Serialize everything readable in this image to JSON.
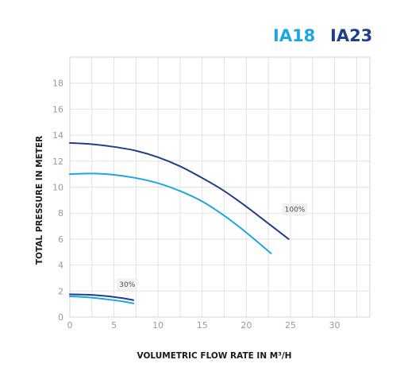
{
  "colors": {
    "series_light": "#1aa7e4",
    "series_dark": "#1f3f8c",
    "grid": "#e2e2e2",
    "annotation_bg": "#f1f1f1"
  },
  "chart_data": {
    "type": "line",
    "xlabel": "VOLUMETRIC FLOW RATE IN M³/H",
    "ylabel": "TOTAL PRESSURE IN METER",
    "xlim": [
      0,
      34
    ],
    "ylim": [
      0,
      20
    ],
    "x_ticks": [
      "0",
      "5",
      "10",
      "15",
      "20",
      "25",
      "30"
    ],
    "y_ticks": [
      "0",
      "2",
      "4",
      "6",
      "8",
      "10",
      "12",
      "14",
      "16",
      "18"
    ],
    "grid": true,
    "legend_position": "top-right",
    "legend": [
      {
        "label": "IA18",
        "color": "#1aa7e4"
      },
      {
        "label": "IA23",
        "color": "#1f3f8c"
      }
    ],
    "annotations": [
      {
        "text": "100%",
        "x": 25.5,
        "y": 8.3
      },
      {
        "text": "30%",
        "x": 6.5,
        "y": 2.5
      }
    ],
    "series": [
      {
        "name": "IA23",
        "speed": "100%",
        "color": "#1f3f8c",
        "x": [
          0,
          2.5,
          5,
          7.5,
          10,
          12.5,
          15,
          17.5,
          20,
          22.5,
          24.8
        ],
        "y": [
          13.4,
          13.3,
          13.1,
          12.8,
          12.3,
          11.6,
          10.7,
          9.7,
          8.5,
          7.2,
          6.0
        ]
      },
      {
        "name": "IA18",
        "speed": "100%",
        "color": "#1aa7e4",
        "x": [
          0,
          2.5,
          5,
          7.5,
          10,
          12.5,
          15,
          17.5,
          20,
          22.8
        ],
        "y": [
          11.0,
          11.05,
          10.95,
          10.7,
          10.3,
          9.7,
          8.9,
          7.8,
          6.5,
          4.9
        ]
      },
      {
        "name": "IA23",
        "speed": "30%",
        "color": "#1f3f8c",
        "x": [
          0,
          2,
          4,
          6,
          7.2
        ],
        "y": [
          1.75,
          1.72,
          1.62,
          1.45,
          1.3
        ]
      },
      {
        "name": "IA18",
        "speed": "30%",
        "color": "#1aa7e4",
        "x": [
          0,
          2,
          4,
          6,
          7.2
        ],
        "y": [
          1.6,
          1.52,
          1.38,
          1.2,
          1.05
        ]
      }
    ]
  }
}
